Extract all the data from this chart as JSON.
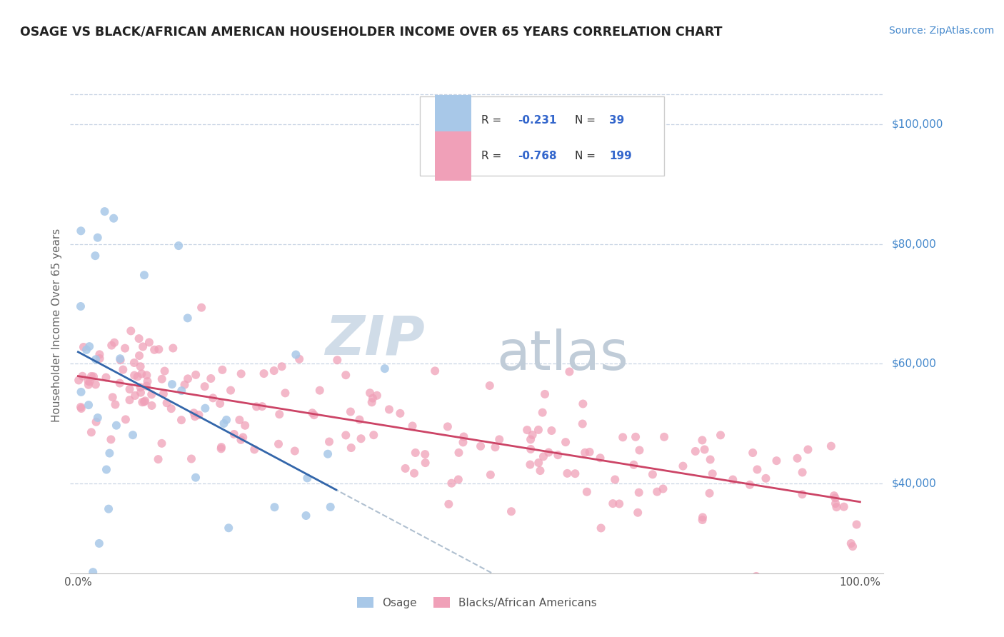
{
  "title": "OSAGE VS BLACK/AFRICAN AMERICAN HOUSEHOLDER INCOME OVER 65 YEARS CORRELATION CHART",
  "source": "Source: ZipAtlas.com",
  "ylabel": "Householder Income Over 65 years",
  "r_osage": -0.231,
  "n_osage": 39,
  "r_black": -0.768,
  "n_black": 199,
  "osage_color": "#a8c8e8",
  "black_color": "#f0a0b8",
  "osage_line_color": "#3366aa",
  "black_line_color": "#cc4466",
  "dashed_line_color": "#b0c0d0",
  "title_color": "#222222",
  "axis_label_color": "#666666",
  "ytick_color": "#4488cc",
  "source_color": "#4488cc",
  "background_color": "#ffffff",
  "grid_color": "#c8d4e4",
  "legend_text_color": "#333333",
  "legend_value_color": "#3366cc",
  "xlim_min": -1,
  "xlim_max": 103,
  "ylim_min": 25000,
  "ylim_max": 108000,
  "ytick_vals": [
    40000,
    60000,
    80000,
    100000
  ],
  "ytick_labels": [
    "$40,000",
    "$60,000",
    "$80,000",
    "$100,000"
  ],
  "watermark_zip_color": "#d0dce8",
  "watermark_atlas_color": "#c0ccd8"
}
